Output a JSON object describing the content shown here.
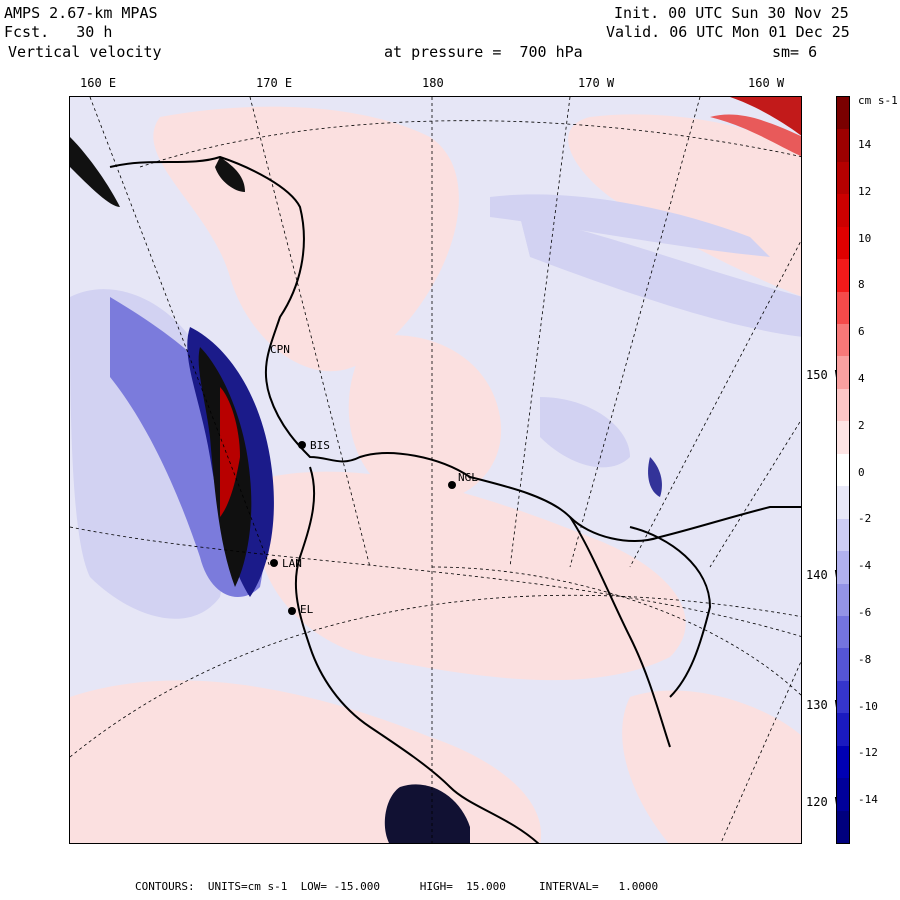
{
  "header": {
    "model": "AMPS 2.67-km MPAS",
    "fcst": "Fcst.   30 h",
    "field": "Vertical velocity",
    "init": "Init. 00 UTC Sun 30 Nov 25",
    "valid": "Valid. 06 UTC Mon 01 Dec 25",
    "pressure": "at pressure =  700 hPa",
    "smooth": "sm= 6"
  },
  "top_axis_labels": [
    "160 E",
    "170 E",
    "180",
    "170 W",
    "160 W"
  ],
  "right_axis_labels": [
    "150 W",
    "140 W",
    "130 W",
    "120 W"
  ],
  "colorbar": {
    "units": "cm s-1",
    "tick_labels": [
      "14",
      "12",
      "10",
      "8",
      "6",
      "4",
      "2",
      "0",
      "-2",
      "-4",
      "-6",
      "-8",
      "-10",
      "-12",
      "-14"
    ],
    "colors": [
      "#7a0000",
      "#9c0000",
      "#b50000",
      "#cc0000",
      "#e00000",
      "#f21a1a",
      "#f54a4a",
      "#f77878",
      "#f9a0a0",
      "#fcc6c6",
      "#fde4e4",
      "#ffffff",
      "#e8e8f8",
      "#cdcdf4",
      "#b1b1ee",
      "#9393e6",
      "#7474df",
      "#5555d6",
      "#3535cc",
      "#1a1ac0",
      "#0000b4",
      "#00009a",
      "#00007e"
    ]
  },
  "stations": [
    {
      "label": "CPN"
    },
    {
      "label": "BIS"
    },
    {
      "label": "NGL"
    },
    {
      "label": "LAN"
    },
    {
      "label": "EL"
    }
  ],
  "footer": "CONTOURS:  UNITS=cm s-1  LOW= -15.000      HIGH=  15.000     INTERVAL=   1.0000",
  "colors": {
    "background_positive": "#fbe3e3",
    "background_negative": "#e4e4f6",
    "coast": "#000000"
  }
}
